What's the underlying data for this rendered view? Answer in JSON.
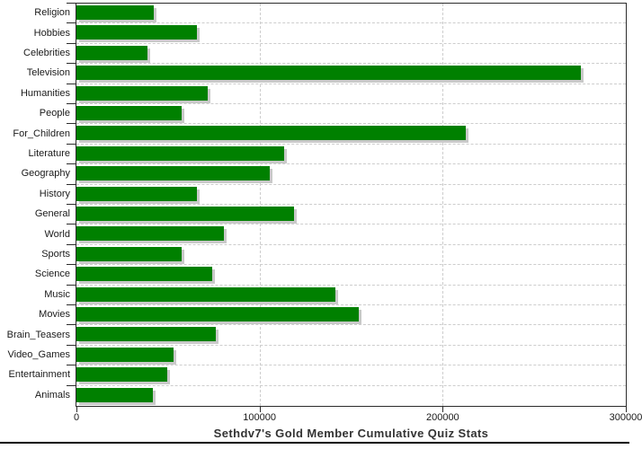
{
  "chart_data": {
    "type": "bar",
    "orientation": "horizontal",
    "title": "Sethdv7's Gold Member Cumulative Quiz Stats",
    "categories": [
      "Religion",
      "Hobbies",
      "Celebrities",
      "Television",
      "Humanities",
      "People",
      "For_Children",
      "Literature",
      "Geography",
      "History",
      "General",
      "World",
      "Sports",
      "Science",
      "Music",
      "Movies",
      "Brain_Teasers",
      "Video_Games",
      "Entertainment",
      "Animals"
    ],
    "values": [
      42000,
      66000,
      39000,
      275500,
      71500,
      57300,
      212700,
      113200,
      105800,
      66000,
      118600,
      80600,
      57300,
      74300,
      141600,
      154400,
      76200,
      52900,
      49800,
      41600
    ],
    "xlabel": "",
    "ylabel": "",
    "xlim": [
      0,
      300000
    ],
    "x_ticks": [
      0,
      100000,
      200000,
      300000
    ],
    "x_tick_labels": [
      "0",
      "100000",
      "200000",
      "300000"
    ],
    "grid": "dashed",
    "legend": "none",
    "bar_color": "#008000",
    "bar_shadow_color": "#c9c9c9",
    "grid_color": "#cdcdcd",
    "axis_color": "#2b2b2b",
    "title_color": "#333333",
    "background": "#ffffff"
  }
}
